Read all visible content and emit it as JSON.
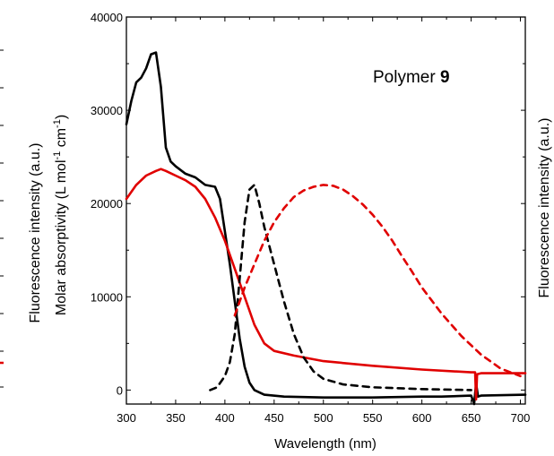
{
  "chart_data": {
    "type": "line",
    "annotation": {
      "text": "Polymer ",
      "bold": "9"
    },
    "xlabel": "Wavelength (nm)",
    "ylabel": "Molar absorptivity (L mol",
    "ylabel_sup1": "-1",
    "ylabel_mid": " cm",
    "ylabel_sup2": "-1",
    "ylabel_end": ")",
    "ylabel_right": "Fluorescence intensity (a.u.)",
    "ylabel_left_clipped": "Fluorescence intensity (a.u.)",
    "xlim": [
      300,
      705
    ],
    "ylim": [
      -1500,
      40000
    ],
    "xticks": [
      300,
      350,
      400,
      450,
      500,
      550,
      600,
      650,
      700
    ],
    "yticks": [
      0,
      10000,
      20000,
      30000,
      40000
    ],
    "series": [
      {
        "color": "#000000",
        "dash": "solid",
        "x": [
          300,
          305,
          310,
          315,
          320,
          325,
          330,
          335,
          340,
          345,
          350,
          360,
          370,
          380,
          390,
          395,
          400,
          405,
          410,
          415,
          420,
          425,
          430,
          440,
          460,
          500,
          550,
          600,
          620,
          650,
          653,
          655,
          657,
          660,
          705
        ],
        "y": [
          28500,
          31000,
          33000,
          33500,
          34500,
          36000,
          36200,
          32500,
          26000,
          24500,
          24000,
          23200,
          22800,
          22000,
          21800,
          20500,
          17000,
          13500,
          9500,
          5500,
          2500,
          800,
          0,
          -500,
          -700,
          -800,
          -800,
          -700,
          -700,
          -600,
          -1500,
          700,
          -700,
          -600,
          -500
        ]
      },
      {
        "color": "#e00000",
        "dash": "solid",
        "x": [
          300,
          310,
          320,
          330,
          335,
          340,
          350,
          360,
          370,
          380,
          390,
          400,
          410,
          420,
          430,
          440,
          450,
          470,
          500,
          550,
          600,
          650,
          654,
          655,
          656,
          660,
          680,
          705
        ],
        "y": [
          20500,
          22000,
          23000,
          23500,
          23700,
          23500,
          23000,
          22500,
          21800,
          20500,
          18500,
          16000,
          13000,
          10000,
          7000,
          5000,
          4200,
          3700,
          3100,
          2600,
          2200,
          1900,
          1900,
          -1000,
          1700,
          1800,
          1800,
          1800
        ]
      },
      {
        "color": "#000000",
        "dash": "dashed",
        "x": [
          385,
          392,
          400,
          405,
          410,
          415,
          420,
          425,
          430,
          435,
          440,
          450,
          460,
          470,
          480,
          490,
          500,
          520,
          550,
          600,
          650
        ],
        "y": [
          0,
          300,
          1500,
          3000,
          6000,
          12000,
          18000,
          21500,
          22000,
          20000,
          17500,
          13500,
          9500,
          6000,
          3500,
          2000,
          1200,
          600,
          300,
          100,
          0
        ]
      },
      {
        "color": "#e00000",
        "dash": "dashed",
        "x": [
          410,
          420,
          430,
          440,
          450,
          460,
          470,
          480,
          490,
          500,
          510,
          520,
          530,
          540,
          550,
          560,
          570,
          580,
          590,
          600,
          620,
          640,
          660,
          680,
          700
        ],
        "y": [
          8000,
          11000,
          13500,
          16000,
          18000,
          19500,
          20700,
          21400,
          21800,
          22000,
          21900,
          21500,
          20800,
          19900,
          18800,
          17500,
          16000,
          14300,
          12700,
          11000,
          8200,
          5800,
          3800,
          2300,
          1500
        ]
      }
    ]
  }
}
